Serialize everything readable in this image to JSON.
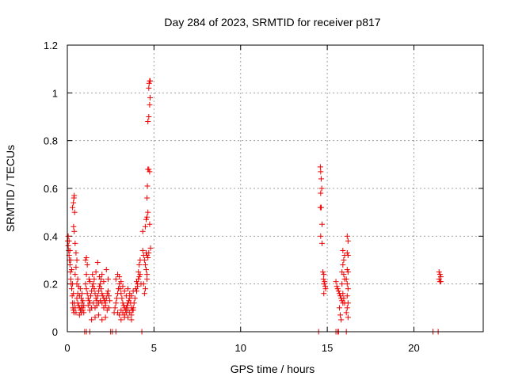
{
  "chart_data": {
    "type": "scatter",
    "title": "Day 284 of 2023, SRMTID for receiver p817",
    "xlabel": "GPS time / hours",
    "ylabel": "SRMTID / TECUs",
    "xlim": [
      0,
      24
    ],
    "ylim": [
      0,
      1.2
    ],
    "xticks": [
      0,
      5,
      10,
      15,
      20
    ],
    "yticks": [
      0,
      0.2,
      0.4,
      0.6,
      0.8,
      1.0,
      1.2
    ],
    "xtick_labels": [
      "0",
      "5",
      "10",
      "15",
      "20"
    ],
    "ytick_labels": [
      "0",
      "0.2",
      "0.4",
      "0.6",
      "0.8",
      "1",
      "1.2"
    ],
    "grid": true,
    "marker": "plus",
    "series": [
      {
        "name": "SRMTID",
        "color": "#ee0000",
        "points": [
          [
            0.02,
            0.38
          ],
          [
            0.05,
            0.36
          ],
          [
            0.08,
            0.34
          ],
          [
            0.1,
            0.32
          ],
          [
            0.12,
            0.3
          ],
          [
            0.15,
            0.28
          ],
          [
            0.18,
            0.25
          ],
          [
            0.2,
            0.22
          ],
          [
            0.22,
            0.2
          ],
          [
            0.25,
            0.18
          ],
          [
            0.28,
            0.15
          ],
          [
            0.3,
            0.12
          ],
          [
            0.32,
            0.1
          ],
          [
            0.35,
            0.09
          ],
          [
            0.38,
            0.08
          ],
          [
            0.05,
            0.4
          ],
          [
            0.1,
            0.38
          ],
          [
            0.15,
            0.34
          ],
          [
            0.2,
            0.3
          ],
          [
            0.25,
            0.26
          ],
          [
            0.3,
            0.2
          ],
          [
            0.35,
            0.16
          ],
          [
            0.4,
            0.12
          ],
          [
            0.45,
            0.1
          ],
          [
            0.5,
            0.08
          ],
          [
            0.3,
            0.52
          ],
          [
            0.35,
            0.54
          ],
          [
            0.38,
            0.56
          ],
          [
            0.4,
            0.57
          ],
          [
            0.42,
            0.5
          ],
          [
            0.36,
            0.44
          ],
          [
            0.4,
            0.42
          ],
          [
            0.45,
            0.37
          ],
          [
            0.5,
            0.33
          ],
          [
            0.55,
            0.3
          ],
          [
            0.5,
            0.27
          ],
          [
            0.45,
            0.24
          ],
          [
            0.55,
            0.14
          ],
          [
            0.6,
            0.12
          ],
          [
            0.65,
            0.11
          ],
          [
            0.7,
            0.1
          ],
          [
            0.75,
            0.09
          ],
          [
            0.8,
            0.1
          ],
          [
            0.85,
            0.12
          ],
          [
            0.9,
            0.13
          ],
          [
            0.95,
            0.11
          ],
          [
            0.6,
            0.16
          ],
          [
            0.7,
            0.15
          ],
          [
            0.8,
            0.14
          ],
          [
            0.9,
            0.1
          ],
          [
            0.95,
            0.08
          ],
          [
            0.55,
            0.2
          ],
          [
            0.65,
            0.19
          ],
          [
            0.75,
            0.18
          ],
          [
            0.85,
            0.16
          ],
          [
            0.6,
            0.22
          ],
          [
            0.7,
            0.07
          ],
          [
            0.8,
            0.08
          ],
          [
            0.9,
            0.09
          ],
          [
            1.0,
            0.0
          ],
          [
            1.1,
            0.0
          ],
          [
            1.05,
            0.3
          ],
          [
            1.1,
            0.31
          ],
          [
            1.15,
            0.28
          ],
          [
            1.05,
            0.2
          ],
          [
            1.1,
            0.18
          ],
          [
            1.15,
            0.16
          ],
          [
            1.2,
            0.14
          ],
          [
            1.25,
            0.13
          ],
          [
            1.3,
            0.12
          ],
          [
            1.35,
            0.15
          ],
          [
            1.4,
            0.17
          ],
          [
            1.45,
            0.19
          ],
          [
            1.5,
            0.2
          ],
          [
            1.55,
            0.18
          ],
          [
            1.6,
            0.16
          ],
          [
            1.65,
            0.14
          ],
          [
            1.7,
            0.13
          ],
          [
            1.75,
            0.15
          ],
          [
            1.8,
            0.17
          ],
          [
            1.85,
            0.19
          ],
          [
            1.9,
            0.2
          ],
          [
            1.95,
            0.18
          ],
          [
            2.0,
            0.16
          ],
          [
            2.05,
            0.15
          ],
          [
            2.1,
            0.14
          ],
          [
            2.15,
            0.13
          ],
          [
            2.2,
            0.12
          ],
          [
            2.25,
            0.14
          ],
          [
            2.3,
            0.16
          ],
          [
            2.35,
            0.17
          ],
          [
            2.4,
            0.15
          ],
          [
            2.45,
            0.13
          ],
          [
            1.2,
            0.11
          ],
          [
            1.3,
            0.09
          ],
          [
            1.4,
            0.1
          ],
          [
            1.5,
            0.12
          ],
          [
            1.6,
            0.1
          ],
          [
            1.7,
            0.11
          ],
          [
            1.8,
            0.12
          ],
          [
            1.9,
            0.13
          ],
          [
            2.0,
            0.12
          ],
          [
            2.1,
            0.1
          ],
          [
            2.2,
            0.11
          ],
          [
            2.3,
            0.09
          ],
          [
            2.4,
            0.1
          ],
          [
            1.25,
            0.22
          ],
          [
            1.45,
            0.24
          ],
          [
            1.65,
            0.25
          ],
          [
            1.75,
            0.29
          ],
          [
            1.85,
            0.23
          ],
          [
            2.0,
            0.24
          ],
          [
            2.1,
            0.21
          ],
          [
            2.25,
            0.26
          ],
          [
            2.35,
            0.22
          ],
          [
            1.1,
            0.24
          ],
          [
            1.3,
            0.21
          ],
          [
            1.55,
            0.22
          ],
          [
            1.95,
            0.22
          ],
          [
            1.4,
            0.05
          ],
          [
            1.6,
            0.06
          ],
          [
            1.8,
            0.07
          ],
          [
            2.0,
            0.05
          ],
          [
            2.2,
            0.06
          ],
          [
            1.3,
            0.0
          ],
          [
            2.5,
            0.0
          ],
          [
            2.6,
            0.0
          ],
          [
            2.8,
            0.0
          ],
          [
            2.7,
            0.08
          ],
          [
            2.75,
            0.1
          ],
          [
            2.8,
            0.12
          ],
          [
            2.85,
            0.14
          ],
          [
            2.9,
            0.16
          ],
          [
            2.95,
            0.18
          ],
          [
            3.0,
            0.2
          ],
          [
            3.05,
            0.18
          ],
          [
            3.1,
            0.16
          ],
          [
            3.15,
            0.14
          ],
          [
            3.2,
            0.12
          ],
          [
            3.25,
            0.11
          ],
          [
            3.3,
            0.1
          ],
          [
            3.35,
            0.09
          ],
          [
            3.4,
            0.1
          ],
          [
            3.45,
            0.11
          ],
          [
            3.5,
            0.12
          ],
          [
            3.55,
            0.13
          ],
          [
            3.6,
            0.14
          ],
          [
            3.65,
            0.12
          ],
          [
            3.7,
            0.1
          ],
          [
            3.75,
            0.09
          ],
          [
            3.8,
            0.1
          ],
          [
            3.85,
            0.12
          ],
          [
            3.9,
            0.14
          ],
          [
            2.8,
            0.22
          ],
          [
            2.9,
            0.24
          ],
          [
            3.0,
            0.23
          ],
          [
            3.1,
            0.21
          ],
          [
            3.2,
            0.19
          ],
          [
            3.3,
            0.17
          ],
          [
            3.4,
            0.15
          ],
          [
            3.5,
            0.18
          ],
          [
            3.6,
            0.16
          ],
          [
            3.7,
            0.15
          ],
          [
            3.8,
            0.17
          ],
          [
            2.9,
            0.08
          ],
          [
            3.0,
            0.07
          ],
          [
            3.1,
            0.09
          ],
          [
            3.2,
            0.08
          ],
          [
            3.3,
            0.07
          ],
          [
            3.4,
            0.08
          ],
          [
            3.5,
            0.09
          ],
          [
            3.6,
            0.08
          ],
          [
            3.7,
            0.07
          ],
          [
            3.8,
            0.09
          ],
          [
            3.1,
            0.05
          ],
          [
            3.3,
            0.06
          ],
          [
            3.5,
            0.06
          ],
          [
            3.7,
            0.05
          ],
          [
            3.95,
            0.18
          ],
          [
            4.0,
            0.17
          ],
          [
            4.05,
            0.2
          ],
          [
            4.1,
            0.22
          ],
          [
            4.15,
            0.23
          ],
          [
            4.2,
            0.24
          ],
          [
            4.0,
            0.21
          ],
          [
            4.05,
            0.19
          ],
          [
            4.1,
            0.25
          ],
          [
            4.15,
            0.28
          ],
          [
            4.2,
            0.3
          ],
          [
            4.25,
            0.2
          ],
          [
            4.3,
            0.0
          ],
          [
            4.35,
            0.34
          ],
          [
            4.4,
            0.32
          ],
          [
            4.45,
            0.3
          ],
          [
            4.5,
            0.28
          ],
          [
            4.55,
            0.26
          ],
          [
            4.6,
            0.24
          ],
          [
            4.4,
            0.2
          ],
          [
            4.5,
            0.18
          ],
          [
            4.6,
            0.22
          ],
          [
            4.45,
            0.16
          ],
          [
            4.55,
            0.33
          ],
          [
            4.6,
            0.32
          ],
          [
            4.65,
            0.31
          ],
          [
            4.7,
            0.33
          ],
          [
            4.35,
            0.42
          ],
          [
            4.5,
            0.44
          ],
          [
            4.55,
            0.47
          ],
          [
            4.6,
            0.48
          ],
          [
            4.65,
            0.5
          ],
          [
            4.6,
            0.56
          ],
          [
            4.62,
            0.61
          ],
          [
            4.65,
            0.68
          ],
          [
            4.7,
            0.68
          ],
          [
            4.75,
            0.67
          ],
          [
            4.8,
            0.35
          ],
          [
            4.75,
            0.45
          ],
          [
            4.65,
            0.88
          ],
          [
            4.7,
            0.9
          ],
          [
            4.75,
            0.95
          ],
          [
            4.78,
            0.98
          ],
          [
            4.7,
            1.02
          ],
          [
            4.72,
            1.04
          ],
          [
            4.75,
            1.05
          ],
          [
            4.78,
            1.05
          ],
          [
            14.5,
            0.0
          ],
          [
            14.6,
            0.69
          ],
          [
            14.62,
            0.67
          ],
          [
            14.65,
            0.64
          ],
          [
            14.68,
            0.6
          ],
          [
            14.62,
            0.58
          ],
          [
            14.6,
            0.52
          ],
          [
            14.65,
            0.52
          ],
          [
            14.7,
            0.45
          ],
          [
            14.62,
            0.4
          ],
          [
            14.7,
            0.37
          ],
          [
            14.75,
            0.25
          ],
          [
            14.8,
            0.24
          ],
          [
            14.78,
            0.22
          ],
          [
            14.85,
            0.21
          ],
          [
            14.82,
            0.2
          ],
          [
            14.88,
            0.19
          ],
          [
            14.9,
            0.18
          ],
          [
            14.8,
            0.16
          ],
          [
            15.5,
            0.0
          ],
          [
            15.6,
            0.0
          ],
          [
            15.65,
            0.0
          ],
          [
            15.5,
            0.21
          ],
          [
            15.55,
            0.19
          ],
          [
            15.6,
            0.18
          ],
          [
            15.65,
            0.17
          ],
          [
            15.7,
            0.16
          ],
          [
            15.75,
            0.15
          ],
          [
            15.8,
            0.14
          ],
          [
            15.85,
            0.13
          ],
          [
            15.9,
            0.12
          ],
          [
            15.7,
            0.1
          ],
          [
            15.75,
            0.07
          ],
          [
            15.8,
            0.05
          ],
          [
            15.85,
            0.25
          ],
          [
            15.9,
            0.28
          ],
          [
            15.95,
            0.3
          ],
          [
            16.0,
            0.32
          ],
          [
            15.9,
            0.34
          ],
          [
            15.95,
            0.24
          ],
          [
            16.0,
            0.22
          ],
          [
            15.85,
            0.2
          ],
          [
            15.9,
            0.16
          ],
          [
            15.95,
            0.14
          ],
          [
            16.0,
            0.12
          ],
          [
            16.1,
            0.0
          ],
          [
            16.15,
            0.4
          ],
          [
            16.2,
            0.38
          ],
          [
            16.15,
            0.33
          ],
          [
            16.2,
            0.32
          ],
          [
            16.15,
            0.26
          ],
          [
            16.2,
            0.25
          ],
          [
            16.1,
            0.22
          ],
          [
            16.15,
            0.2
          ],
          [
            16.2,
            0.18
          ],
          [
            16.15,
            0.15
          ],
          [
            16.2,
            0.12
          ],
          [
            16.15,
            0.1
          ],
          [
            16.1,
            0.08
          ],
          [
            16.2,
            0.06
          ],
          [
            21.1,
            0.0
          ],
          [
            21.4,
            0.0
          ],
          [
            21.45,
            0.25
          ],
          [
            21.5,
            0.24
          ],
          [
            21.55,
            0.23
          ],
          [
            21.45,
            0.22
          ],
          [
            21.5,
            0.21
          ],
          [
            21.55,
            0.21
          ]
        ]
      }
    ]
  }
}
